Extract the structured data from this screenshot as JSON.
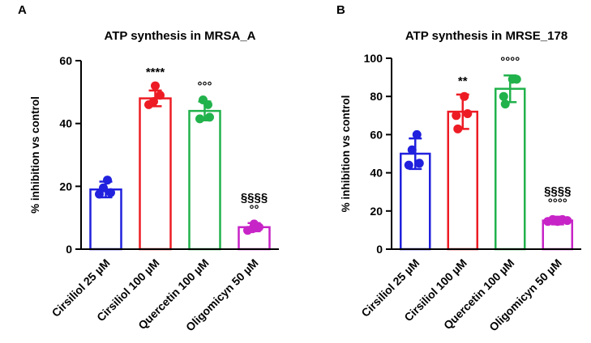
{
  "chart_data": [
    {
      "type": "bar",
      "panel": "A",
      "title": "ATP synthesis in MRSA_A",
      "xlabel": "",
      "ylabel": "% inhibition vs control",
      "ylim": [
        0,
        60
      ],
      "yticks": [
        0,
        20,
        40,
        60
      ],
      "grid": false,
      "legend": "none",
      "bar_style": "open-bars-with-colored-outline-scatter-points-and-sd-error-bars",
      "categories": [
        "Cirsiliol 25 µM",
        "Cirsiliol 100 µM",
        "Quercetin 100 µM",
        "Oligomicyn 50 µM"
      ],
      "series": [
        {
          "category": "Cirsiliol 25 µM",
          "color": "#2121DE",
          "mean": 19,
          "sd": 2.5,
          "points": [
            {
              "dx": -8,
              "v": 17.5
            },
            {
              "dx": 6,
              "v": 18
            },
            {
              "dx": -3,
              "v": 19.5
            },
            {
              "dx": 2,
              "v": 22
            }
          ],
          "annotations": []
        },
        {
          "category": "Cirsiliol 100 µM",
          "color": "#ED1C24",
          "mean": 48,
          "sd": 2.5,
          "points": [
            {
              "dx": -8,
              "v": 46
            },
            {
              "dx": -2,
              "v": 47
            },
            {
              "dx": 6,
              "v": 49
            },
            {
              "dx": 0,
              "v": 52
            }
          ],
          "annotations": [
            "****"
          ]
        },
        {
          "category": "Quercetin 100 µM",
          "color": "#22B24C",
          "mean": 44,
          "sd": 3,
          "points": [
            {
              "dx": -6,
              "v": 41.5
            },
            {
              "dx": 6,
              "v": 42
            },
            {
              "dx": 4,
              "v": 46
            },
            {
              "dx": -2,
              "v": 47.5
            }
          ],
          "annotations": [
            "°°°"
          ]
        },
        {
          "category": "Oligomicyn 50 µM",
          "color": "#C724C7",
          "mean": 7,
          "sd": 1.3,
          "points": [
            {
              "dx": -8,
              "v": 6
            },
            {
              "dx": -2,
              "v": 6.5
            },
            {
              "dx": 6,
              "v": 7
            },
            {
              "dx": 0,
              "v": 8
            }
          ],
          "annotations": [
            "§§§§",
            "°°"
          ]
        }
      ]
    },
    {
      "type": "bar",
      "panel": "B",
      "title": "ATP synthesis in MRSE_178",
      "xlabel": "",
      "ylabel": "% inhibition vs control",
      "ylim": [
        0,
        100
      ],
      "yticks": [
        0,
        20,
        40,
        60,
        80,
        100
      ],
      "grid": false,
      "legend": "none",
      "bar_style": "open-bars-with-colored-outline-scatter-points-and-sd-error-bars",
      "categories": [
        "Cirsiliol 25 µM",
        "Cirsiliol 100 µM",
        "Quercetin 100 µM",
        "Oligomicyn 50 µM"
      ],
      "series": [
        {
          "category": "Cirsiliol 25 µM",
          "color": "#2121DE",
          "mean": 50,
          "sd": 8,
          "points": [
            {
              "dx": -8,
              "v": 44
            },
            {
              "dx": 5,
              "v": 45
            },
            {
              "dx": -4,
              "v": 52
            },
            {
              "dx": 2,
              "v": 60
            }
          ],
          "annotations": []
        },
        {
          "category": "Cirsiliol 100 µM",
          "color": "#ED1C24",
          "mean": 72,
          "sd": 9,
          "points": [
            {
              "dx": -6,
              "v": 63
            },
            {
              "dx": -8,
              "v": 70
            },
            {
              "dx": 6,
              "v": 71
            },
            {
              "dx": 2,
              "v": 80
            }
          ],
          "annotations": [
            "**"
          ]
        },
        {
          "category": "Quercetin 100 µM",
          "color": "#22B24C",
          "mean": 84,
          "sd": 7,
          "points": [
            {
              "dx": -6,
              "v": 76
            },
            {
              "dx": -8,
              "v": 80
            },
            {
              "dx": 3,
              "v": 89
            },
            {
              "dx": 8,
              "v": 89
            }
          ],
          "annotations": [
            "°°°°"
          ]
        },
        {
          "category": "Oligomicyn 50 µM",
          "color": "#C724C7",
          "mean": 15,
          "sd": 2,
          "points": [
            {
              "dx": -12,
              "v": 14.5
            },
            {
              "dx": -6,
              "v": 15.5
            },
            {
              "dx": 0,
              "v": 14.5
            },
            {
              "dx": 6,
              "v": 15.5
            },
            {
              "dx": 12,
              "v": 15
            }
          ],
          "annotations": [
            "§§§§",
            "°°°°"
          ]
        }
      ]
    }
  ]
}
